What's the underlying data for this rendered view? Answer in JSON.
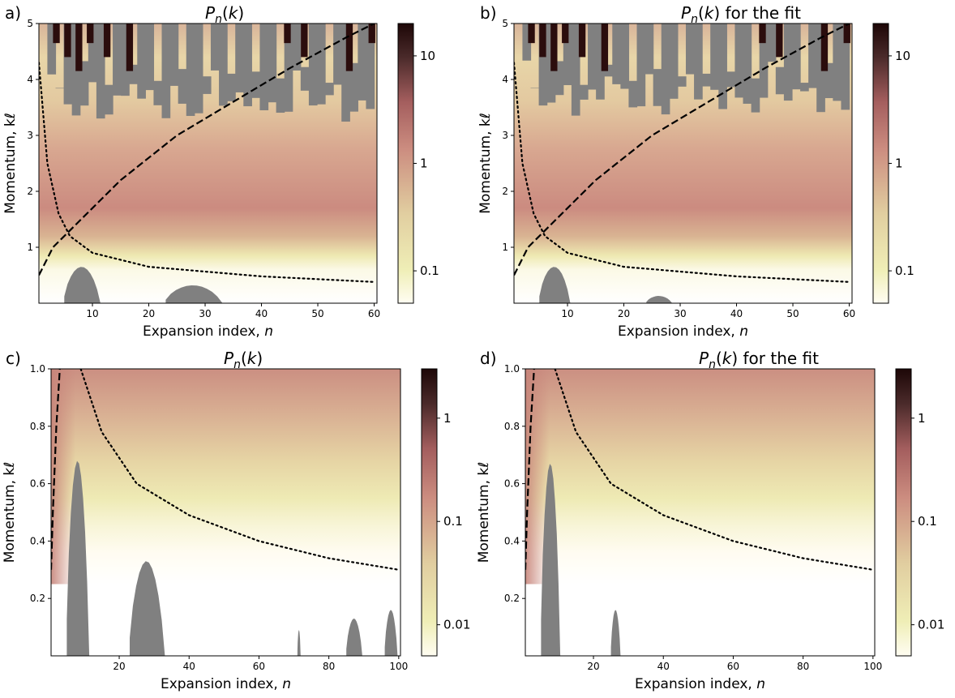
{
  "figure": {
    "panels": [
      {
        "letter": "a)",
        "title": "P_n(k)",
        "title_suffix": "",
        "xlabel": "Expansion index, ",
        "xlabel_var": "n",
        "ylabel": "Momentum, kℓ",
        "xticks": [
          "10",
          "20",
          "30",
          "40",
          "50",
          "60"
        ],
        "yticks": [
          "1",
          "2",
          "3",
          "4",
          "5"
        ],
        "cbar_ticks": [
          "10",
          "1",
          "0.1"
        ]
      },
      {
        "letter": "b)",
        "title": "P_n(k)",
        "title_suffix": " for the fit",
        "xlabel": "Expansion index, ",
        "xlabel_var": "n",
        "ylabel": "Momentum, kℓ",
        "xticks": [
          "10",
          "20",
          "30",
          "40",
          "50",
          "60"
        ],
        "yticks": [
          "1",
          "2",
          "3",
          "4",
          "5"
        ],
        "cbar_ticks": [
          "10",
          "1",
          "0.1"
        ]
      },
      {
        "letter": "c)",
        "title": "P_n(k)",
        "title_suffix": "",
        "xlabel": "Expansion index, ",
        "xlabel_var": "n",
        "ylabel": "Momentum, kℓ",
        "xticks": [
          "20",
          "40",
          "60",
          "80",
          "100"
        ],
        "yticks": [
          "0.2",
          "0.4",
          "0.6",
          "0.8",
          "1.0"
        ],
        "cbar_ticks": [
          "1",
          "0.1",
          "0.01"
        ]
      },
      {
        "letter": "d)",
        "title": "P_n(k)",
        "title_suffix": " for the fit",
        "xlabel": "Expansion index, ",
        "xlabel_var": "n",
        "ylabel": "Momentum, kℓ",
        "xticks": [
          "20",
          "40",
          "60",
          "80",
          "100"
        ],
        "yticks": [
          "0.2",
          "0.4",
          "0.6",
          "0.8",
          "1.0"
        ],
        "cbar_ticks": [
          "1",
          "0.1",
          "0.01"
        ]
      }
    ]
  },
  "chart_data": [
    {
      "type": "heatmap",
      "title": "P_n(k)",
      "xlabel": "Expansion index, n",
      "ylabel": "Momentum, kℓ",
      "xlim": [
        0.5,
        60.5
      ],
      "ylim": [
        0,
        5
      ],
      "colorbar": {
        "scale": "log",
        "range": [
          0.05,
          20
        ],
        "ticks": [
          0.1,
          1,
          10
        ],
        "colors": [
          "#fffdf2",
          "#efeeb6",
          "#e1cea0",
          "#cc8d80",
          "#a45e5e",
          "#4a2a2a",
          "#1d0707"
        ]
      },
      "masked_color": "#808080",
      "lines": [
        {
          "style": "dashed",
          "label": "",
          "points": [
            [
              0.5,
              0.5
            ],
            [
              3,
              1.0
            ],
            [
              8,
              1.5
            ],
            [
              15,
              2.2
            ],
            [
              25,
              3.0
            ],
            [
              35,
              3.6
            ],
            [
              45,
              4.2
            ],
            [
              55,
              4.75
            ],
            [
              60,
              5.0
            ]
          ]
        },
        {
          "style": "dotted",
          "label": "",
          "points": [
            [
              0.5,
              4.3
            ],
            [
              2,
              2.5
            ],
            [
              4,
              1.6
            ],
            [
              6,
              1.2
            ],
            [
              10,
              0.9
            ],
            [
              20,
              0.65
            ],
            [
              40,
              0.48
            ],
            [
              60,
              0.38
            ]
          ]
        }
      ],
      "masked_regions": [
        {
          "n": [
            5,
            12
          ],
          "k": [
            0,
            0.65
          ]
        },
        {
          "n": [
            23,
            34
          ],
          "k": [
            0,
            0.32
          ]
        },
        {
          "n": [
            2,
            60
          ],
          "k": [
            3.2,
            5.0
          ],
          "note": "irregular upper region"
        }
      ]
    },
    {
      "type": "heatmap",
      "title": "P_n(k) for the fit",
      "xlabel": "Expansion index, n",
      "ylabel": "Momentum, kℓ",
      "xlim": [
        0.5,
        60.5
      ],
      "ylim": [
        0,
        5
      ],
      "colorbar": {
        "scale": "log",
        "range": [
          0.05,
          20
        ],
        "ticks": [
          0.1,
          1,
          10
        ],
        "colors": [
          "#fffdf2",
          "#efeeb6",
          "#e1cea0",
          "#cc8d80",
          "#a45e5e",
          "#4a2a2a",
          "#1d0707"
        ]
      },
      "masked_color": "#808080",
      "lines": [
        {
          "style": "dashed",
          "label": "",
          "points": [
            [
              0.5,
              0.5
            ],
            [
              3,
              1.0
            ],
            [
              8,
              1.5
            ],
            [
              15,
              2.2
            ],
            [
              25,
              3.0
            ],
            [
              35,
              3.6
            ],
            [
              45,
              4.2
            ],
            [
              55,
              4.75
            ],
            [
              60,
              5.0
            ]
          ]
        },
        {
          "style": "dotted",
          "label": "",
          "points": [
            [
              0.5,
              4.3
            ],
            [
              2,
              2.5
            ],
            [
              4,
              1.6
            ],
            [
              6,
              1.2
            ],
            [
              10,
              0.9
            ],
            [
              20,
              0.65
            ],
            [
              40,
              0.48
            ],
            [
              60,
              0.38
            ]
          ]
        }
      ],
      "masked_regions": [
        {
          "n": [
            5,
            11
          ],
          "k": [
            0,
            0.65
          ]
        },
        {
          "n": [
            24,
            29
          ],
          "k": [
            0,
            0.13
          ]
        },
        {
          "n": [
            2,
            60
          ],
          "k": [
            3.3,
            5.0
          ],
          "note": "irregular upper region"
        }
      ]
    },
    {
      "type": "heatmap",
      "title": "P_n(k)",
      "xlabel": "Expansion index, n",
      "ylabel": "Momentum, kℓ",
      "xlim": [
        0.5,
        100.5
      ],
      "ylim": [
        0,
        1.0
      ],
      "colorbar": {
        "scale": "log",
        "range": [
          0.005,
          3
        ],
        "ticks": [
          0.01,
          0.1,
          1
        ],
        "colors": [
          "#fffdf2",
          "#efeeb6",
          "#e1cea0",
          "#cc8d80",
          "#a45e5e",
          "#4a2a2a",
          "#1d0707"
        ]
      },
      "masked_color": "#808080",
      "lines": [
        {
          "style": "dashed",
          "label": "",
          "points": [
            [
              0.5,
              0.3
            ],
            [
              1,
              0.5
            ],
            [
              2,
              0.8
            ],
            [
              3,
              1.0
            ]
          ]
        },
        {
          "style": "dotted",
          "label": "",
          "points": [
            [
              9,
              1.0
            ],
            [
              15,
              0.78
            ],
            [
              25,
              0.6
            ],
            [
              40,
              0.49
            ],
            [
              60,
              0.4
            ],
            [
              80,
              0.34
            ],
            [
              100,
              0.3
            ]
          ]
        }
      ],
      "masked_regions": [
        {
          "n": [
            5,
            12
          ],
          "k": [
            0,
            0.68
          ]
        },
        {
          "n": [
            23,
            34
          ],
          "k": [
            0,
            0.33
          ]
        },
        {
          "n": [
            71,
            72
          ],
          "k": [
            0,
            0.09
          ]
        },
        {
          "n": [
            85,
            90
          ],
          "k": [
            0,
            0.13
          ]
        },
        {
          "n": [
            96,
            100
          ],
          "k": [
            0,
            0.16
          ]
        }
      ]
    },
    {
      "type": "heatmap",
      "title": "P_n(k) for the fit",
      "xlabel": "Expansion index, n",
      "ylabel": "Momentum, kℓ",
      "xlim": [
        0.5,
        100.5
      ],
      "ylim": [
        0,
        1.0
      ],
      "colorbar": {
        "scale": "log",
        "range": [
          0.005,
          3
        ],
        "ticks": [
          0.01,
          0.1,
          1
        ],
        "colors": [
          "#fffdf2",
          "#efeeb6",
          "#e1cea0",
          "#cc8d80",
          "#a45e5e",
          "#4a2a2a",
          "#1d0707"
        ]
      },
      "masked_color": "#808080",
      "lines": [
        {
          "style": "dashed",
          "label": "",
          "points": [
            [
              0.5,
              0.3
            ],
            [
              1,
              0.5
            ],
            [
              2,
              0.8
            ],
            [
              3,
              1.0
            ]
          ]
        },
        {
          "style": "dotted",
          "label": "",
          "points": [
            [
              9,
              1.0
            ],
            [
              15,
              0.78
            ],
            [
              25,
              0.6
            ],
            [
              40,
              0.49
            ],
            [
              60,
              0.4
            ],
            [
              80,
              0.34
            ],
            [
              100,
              0.3
            ]
          ]
        }
      ],
      "masked_regions": [
        {
          "n": [
            5,
            11
          ],
          "k": [
            0,
            0.67
          ]
        },
        {
          "n": [
            25,
            28
          ],
          "k": [
            0,
            0.16
          ]
        }
      ]
    }
  ]
}
